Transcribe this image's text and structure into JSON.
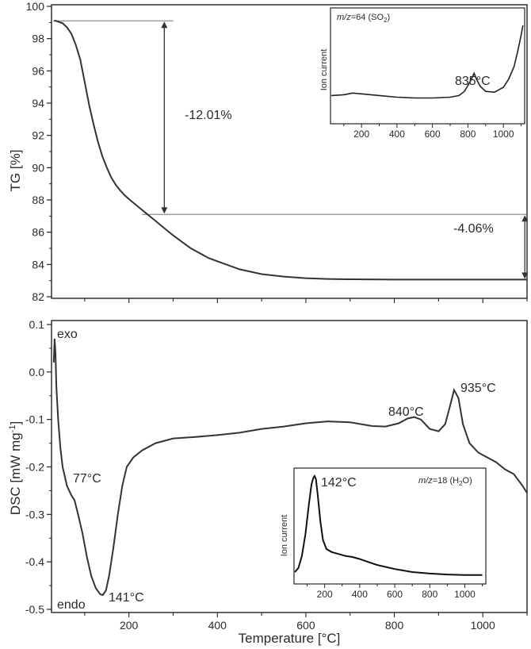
{
  "chart_data": [
    {
      "type": "line",
      "ylabel": "TG [%]",
      "xlabel": "",
      "xlim": [
        25,
        1100
      ],
      "ylim": [
        82,
        100
      ],
      "yticks": [
        "82",
        "84",
        "86",
        "88",
        "90",
        "92",
        "94",
        "96",
        "98",
        "100"
      ],
      "series": [
        {
          "x": [
            30,
            35,
            40,
            50,
            60,
            70,
            80,
            90,
            100,
            110,
            120,
            130,
            140,
            150,
            160,
            170,
            180,
            190,
            200,
            220,
            240,
            260,
            280,
            300,
            320,
            340,
            360,
            380,
            400,
            450,
            500,
            550,
            600,
            650,
            700,
            800,
            900,
            1000,
            1100
          ],
          "y": [
            99.1,
            99.1,
            99.05,
            98.95,
            98.7,
            98.3,
            97.6,
            96.7,
            95.3,
            93.9,
            92.7,
            91.6,
            90.7,
            90.0,
            89.4,
            88.95,
            88.6,
            88.3,
            88.05,
            87.6,
            87.15,
            86.7,
            86.25,
            85.8,
            85.4,
            85.0,
            84.7,
            84.4,
            84.2,
            83.7,
            83.4,
            83.25,
            83.15,
            83.1,
            83.08,
            83.06,
            83.06,
            83.06,
            83.06
          ]
        }
      ],
      "annotations": [
        {
          "text": "-12.01%",
          "x": 307,
          "y": 93.5,
          "arrow_x": 280,
          "from": 99.1,
          "to": 87.1
        },
        {
          "text": "-4.06%",
          "x": 1000,
          "y": 85.0,
          "arrow_x": 1095,
          "from": 87.1,
          "to": 83.06
        }
      ],
      "reference_lines": [
        {
          "y": 99.1,
          "x_from": 30,
          "x_to": 300
        },
        {
          "y": 87.1,
          "x_from": 230,
          "x_to": 1100
        }
      ]
    },
    {
      "type": "line",
      "inset": true,
      "title": "m/z=64 (SO₂)",
      "title_italic": "m/z",
      "title_rest": "=64 (SO",
      "title_sub": "2",
      "title_end": ")",
      "ylabel": "Ion current",
      "xlim": [
        25,
        1120
      ],
      "xticks": [
        "200",
        "400",
        "600",
        "800",
        "1000"
      ],
      "annotation": "835°C",
      "series": [
        {
          "x": [
            30,
            100,
            150,
            200,
            300,
            400,
            500,
            600,
            700,
            750,
            780,
            800,
            820,
            835,
            850,
            870,
            900,
            950,
            1000,
            1030,
            1060,
            1080,
            1100,
            1110
          ],
          "y": [
            0.15,
            0.16,
            0.18,
            0.17,
            0.15,
            0.13,
            0.12,
            0.12,
            0.13,
            0.15,
            0.2,
            0.27,
            0.35,
            0.42,
            0.34,
            0.26,
            0.2,
            0.19,
            0.25,
            0.35,
            0.5,
            0.68,
            0.88,
            1.0
          ]
        }
      ]
    },
    {
      "type": "line",
      "ylabel": "DSC [mW mg⁻¹]",
      "ylabel_main": "DSC [mW mg",
      "ylabel_sup": "-1",
      "ylabel_end": "]",
      "xlabel": "Temperature [°C]",
      "xlim": [
        25,
        1100
      ],
      "ylim": [
        -0.5,
        0.1
      ],
      "xticks": [
        "200",
        "400",
        "600",
        "800",
        "1000"
      ],
      "yticks": [
        "-0.5",
        "-0.4",
        "-0.3",
        "-0.2",
        "-0.1",
        "0.0",
        "0.1"
      ],
      "labels": {
        "exo": "exo",
        "endo": "endo"
      },
      "annotations": [
        {
          "text": "77°C",
          "x": 77,
          "y": -0.26
        },
        {
          "text": "141°C",
          "x": 141,
          "y": -0.47
        },
        {
          "text": "840°C",
          "x": 840,
          "y": -0.095
        },
        {
          "text": "935°C",
          "x": 935,
          "y": -0.038
        }
      ],
      "series": [
        {
          "x": [
            30,
            32,
            34,
            36,
            40,
            45,
            50,
            60,
            70,
            77,
            85,
            95,
            105,
            115,
            125,
            135,
            141,
            148,
            155,
            165,
            175,
            185,
            195,
            210,
            230,
            260,
            300,
            350,
            400,
            450,
            500,
            550,
            600,
            650,
            700,
            750,
            780,
            810,
            830,
            845,
            860,
            880,
            900,
            915,
            925,
            935,
            945,
            955,
            970,
            990,
            1010,
            1030,
            1050,
            1070,
            1090,
            1100
          ],
          "y": [
            0.02,
            0.07,
            0.04,
            -0.03,
            -0.1,
            -0.16,
            -0.2,
            -0.24,
            -0.26,
            -0.27,
            -0.3,
            -0.34,
            -0.39,
            -0.43,
            -0.455,
            -0.468,
            -0.47,
            -0.46,
            -0.43,
            -0.37,
            -0.3,
            -0.24,
            -0.2,
            -0.18,
            -0.165,
            -0.15,
            -0.14,
            -0.137,
            -0.133,
            -0.128,
            -0.12,
            -0.115,
            -0.108,
            -0.104,
            -0.106,
            -0.114,
            -0.115,
            -0.108,
            -0.098,
            -0.095,
            -0.1,
            -0.12,
            -0.125,
            -0.11,
            -0.075,
            -0.038,
            -0.055,
            -0.11,
            -0.15,
            -0.17,
            -0.18,
            -0.19,
            -0.205,
            -0.215,
            -0.24,
            -0.255
          ]
        }
      ]
    },
    {
      "type": "line",
      "inset": true,
      "title": "m/z=18 (H₂O)",
      "title_italic": "m/z",
      "title_rest": "=18 (H",
      "title_sub": "2",
      "title_end": "O)",
      "ylabel": "Ion current",
      "xlim": [
        25,
        1120
      ],
      "xticks": [
        "200",
        "400",
        "600",
        "800",
        "1000"
      ],
      "annotation": "142°C",
      "series": [
        {
          "x": [
            30,
            50,
            70,
            90,
            110,
            125,
            135,
            142,
            150,
            160,
            175,
            190,
            210,
            240,
            280,
            320,
            360,
            400,
            450,
            500,
            600,
            700,
            800,
            900,
            1000,
            1100
          ],
          "y": [
            0.04,
            0.08,
            0.2,
            0.42,
            0.72,
            0.92,
            0.98,
            1.0,
            0.97,
            0.82,
            0.55,
            0.36,
            0.27,
            0.24,
            0.22,
            0.2,
            0.19,
            0.17,
            0.14,
            0.11,
            0.07,
            0.04,
            0.025,
            0.015,
            0.01,
            0.01
          ]
        }
      ]
    }
  ]
}
